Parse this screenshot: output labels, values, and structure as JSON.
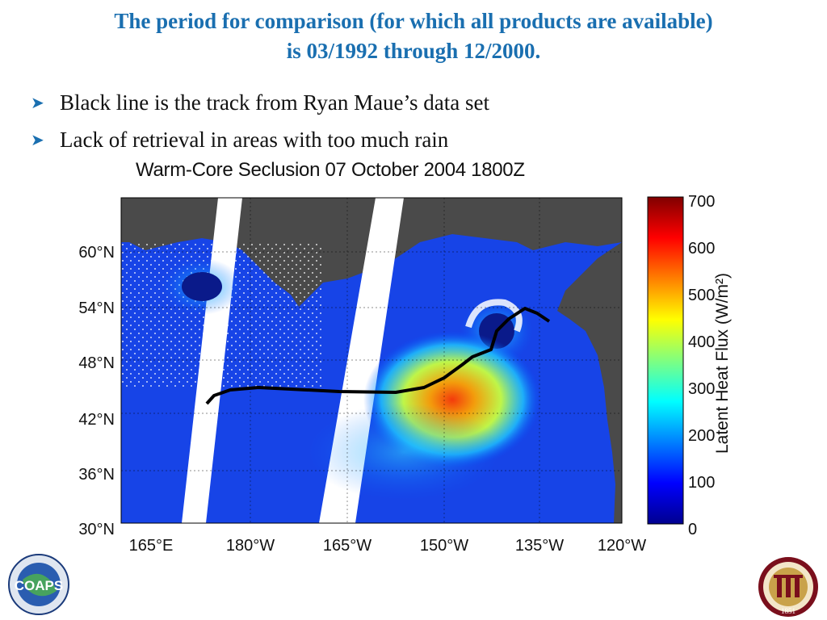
{
  "slide": {
    "title_line1": "The period for comparison (for which all products are available)",
    "title_line2": "is 03/1992 through 12/2000.",
    "bullets": [
      "Black line is the track from Ryan Maue’s data set",
      "Lack of retrieval in areas with too much rain"
    ],
    "accent_color": "#1a6fb0"
  },
  "figure": {
    "title": "Warm-Core Seclusion 07 October 2004 1800Z",
    "lat_labels": [
      "30°N",
      "36°N",
      "42°N",
      "48°N",
      "54°N",
      "60°N"
    ],
    "lon_labels": [
      "165°E",
      "180°W",
      "165°W",
      "150°W",
      "135°W",
      "120°W"
    ],
    "colorbar_label": "Latent Heat Flux (W/m²)",
    "colorbar_ticks": [
      "0",
      "100",
      "200",
      "300",
      "400",
      "500",
      "600",
      "700"
    ],
    "colormap": "jet",
    "land_color": "#4a4a4a",
    "track_color": "#000000"
  },
  "logos": {
    "left": {
      "name": "COAPS",
      "text": "COAPS"
    },
    "right": {
      "name": "Florida State University seal",
      "text": "FLORIDA STATE UNIVERSITY 1851"
    }
  }
}
